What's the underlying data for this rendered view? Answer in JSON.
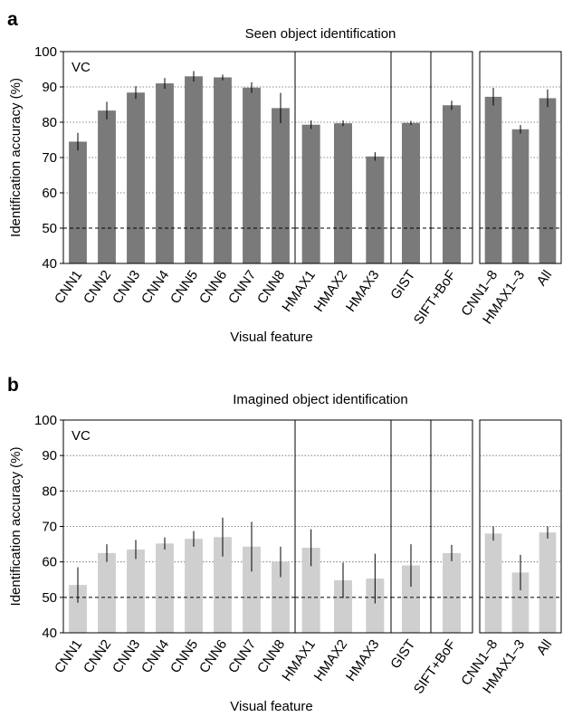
{
  "chart_data": [
    {
      "panel_label": "a",
      "type": "bar",
      "title": "Seen object identification",
      "annotation": "VC",
      "xlabel": "Visual feature",
      "ylabel": "Identification accuracy (%)",
      "ylim": [
        40,
        100
      ],
      "yticks": [
        40,
        50,
        60,
        70,
        80,
        90,
        100
      ],
      "grid": true,
      "chance_level": 50,
      "bar_color": "#7a7a7a",
      "groups": [
        {
          "categories": [
            "CNN1",
            "CNN2",
            "CNN3",
            "CNN4",
            "CNN5",
            "CNN6",
            "CNN7",
            "CNN8"
          ],
          "values": [
            74.5,
            83.3,
            88.4,
            91.0,
            93.0,
            92.7,
            89.8,
            84.0
          ],
          "errors": [
            2.5,
            2.5,
            1.8,
            1.5,
            1.5,
            0.8,
            1.5,
            4.3
          ]
        },
        {
          "categories": [
            "HMAX1",
            "HMAX2",
            "HMAX3"
          ],
          "values": [
            79.3,
            79.7,
            70.3
          ],
          "errors": [
            1.2,
            0.8,
            1.2
          ]
        },
        {
          "categories": [
            "GIST"
          ],
          "values": [
            79.8
          ],
          "errors": [
            0.6
          ]
        },
        {
          "categories": [
            "SIFT+BoF"
          ],
          "values": [
            84.8
          ],
          "errors": [
            1.3
          ]
        },
        {
          "categories": [
            "CNN1–8",
            "HMAX1–3",
            "All"
          ],
          "values": [
            87.2,
            78.0,
            86.8
          ],
          "errors": [
            2.5,
            1.2,
            2.5
          ]
        }
      ]
    },
    {
      "panel_label": "b",
      "type": "bar",
      "title": "Imagined object identification",
      "annotation": "VC",
      "xlabel": "Visual feature",
      "ylabel": "Identification accuracy (%)",
      "ylim": [
        40,
        100
      ],
      "yticks": [
        40,
        50,
        60,
        70,
        80,
        90,
        100
      ],
      "grid": true,
      "chance_level": 50,
      "bar_color": "#cfcfcf",
      "groups": [
        {
          "categories": [
            "CNN1",
            "CNN2",
            "CNN3",
            "CNN4",
            "CNN5",
            "CNN6",
            "CNN7",
            "CNN8"
          ],
          "values": [
            53.5,
            62.5,
            63.5,
            65.2,
            66.5,
            67.0,
            64.3,
            60.0
          ],
          "errors": [
            5.0,
            2.5,
            2.7,
            1.7,
            2.2,
            5.5,
            7.0,
            4.3
          ]
        },
        {
          "categories": [
            "HMAX1",
            "HMAX2",
            "HMAX3"
          ],
          "values": [
            64.0,
            54.8,
            55.3
          ],
          "errors": [
            5.2,
            5.0,
            7.0
          ]
        },
        {
          "categories": [
            "GIST"
          ],
          "values": [
            59.0
          ],
          "errors": [
            6.0
          ]
        },
        {
          "categories": [
            "SIFT+BoF"
          ],
          "values": [
            62.5
          ],
          "errors": [
            2.3
          ]
        },
        {
          "categories": [
            "CNN1–8",
            "HMAX1–3",
            "All"
          ],
          "values": [
            68.0,
            57.0,
            68.3
          ],
          "errors": [
            2.0,
            5.0,
            1.7
          ]
        }
      ]
    }
  ]
}
